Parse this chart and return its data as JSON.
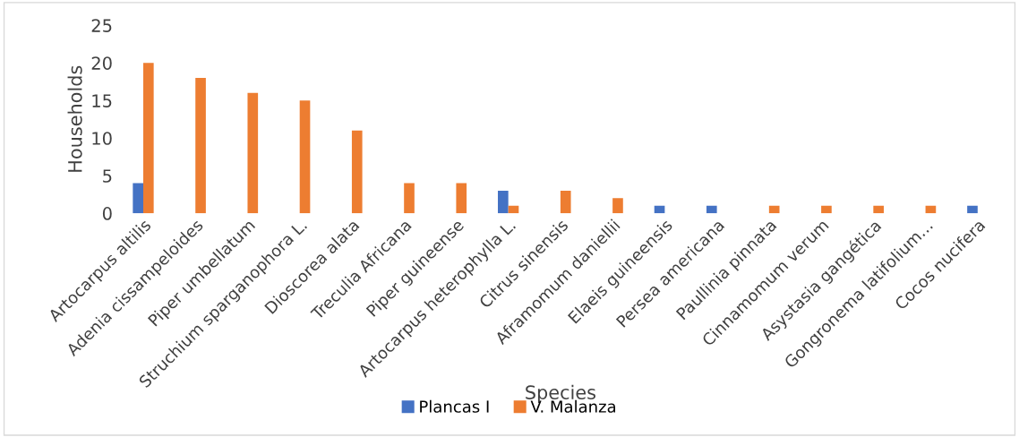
{
  "chart_data": {
    "type": "bar",
    "xlabel": "Species",
    "ylabel": "Households",
    "categories": [
      "Artocarpus altilis",
      "Adenia cissampeloides",
      "Piper umbellatum",
      "Struchium sparganophora L.",
      "Dioscorea alata",
      "Treculia Africana",
      "Piper guineense",
      "Artocarpus heterophylla L.",
      "Citrus sinensis",
      "Aframomum daniellii",
      "Elaeis guineensis",
      "Persea americana",
      "Paullinia pinnata",
      "Cinnamomum verum",
      "Asystasia gangética",
      "Gongronema latifolium…",
      "Cocos nucifera"
    ],
    "series": [
      {
        "name": "Plancas I",
        "color": "#4472c4",
        "values": [
          4,
          0,
          0,
          0,
          0,
          0,
          0,
          3,
          0,
          0,
          1,
          1,
          0,
          0,
          0,
          0,
          1
        ]
      },
      {
        "name": "V. Malanza",
        "color": "#ed7d31",
        "values": [
          20,
          18,
          16,
          15,
          11,
          4,
          4,
          1,
          3,
          2,
          0,
          0,
          1,
          1,
          1,
          1,
          0
        ]
      }
    ],
    "ylim": [
      0,
      25
    ],
    "yticks": [
      0,
      5,
      10,
      15,
      20,
      25
    ],
    "grid": false,
    "legend": "bottom"
  }
}
